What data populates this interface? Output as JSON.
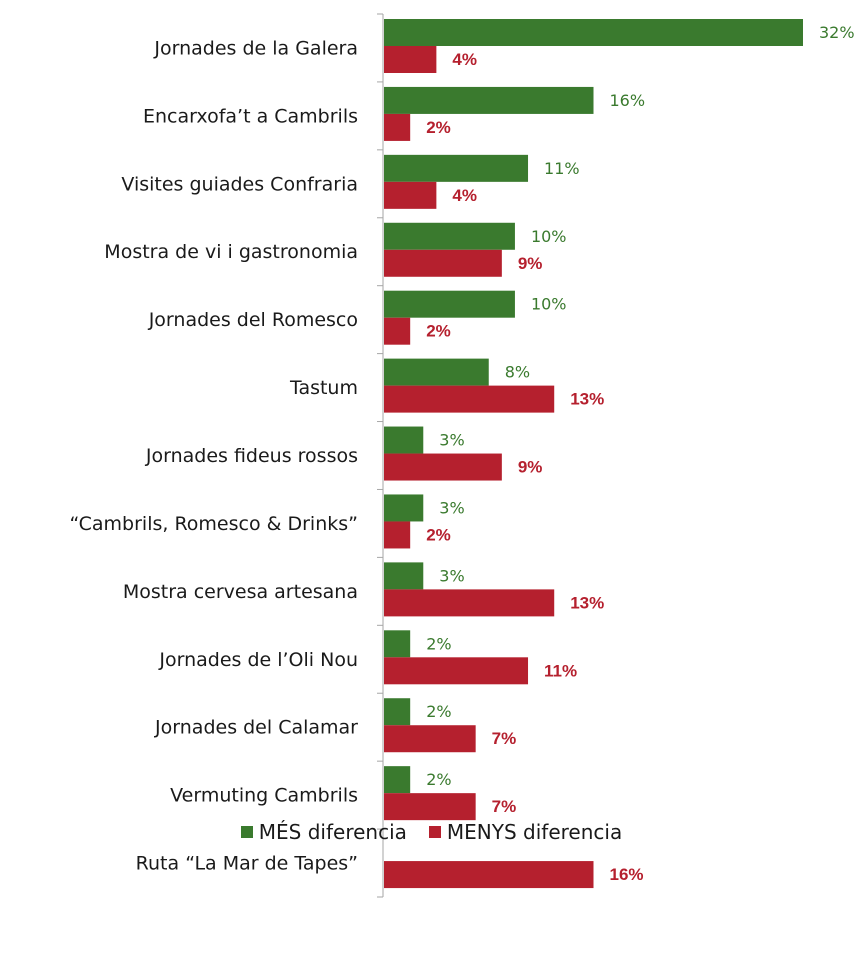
{
  "chart_data": {
    "type": "bar",
    "orientation": "horizontal",
    "categories": [
      "Jornades de la Galera",
      "Encarxofa’t a Cambrils",
      "Visites guiades Confraria",
      "Mostra de vi i gastronomia",
      "Jornades del Romesco",
      "Tastum",
      "Jornades fideus rossos",
      "“Cambrils, Romesco & Drinks”",
      "Mostra cervesa artesana",
      "Jornades de l’Oli Nou",
      "Jornades del Calamar",
      "Vermuting Cambrils",
      "Ruta “La Mar de Tapes”"
    ],
    "series": [
      {
        "name": "MÉS diferencia",
        "color": "#3a7a2e",
        "values": [
          32,
          16,
          11,
          10,
          10,
          8,
          3,
          3,
          3,
          2,
          2,
          2,
          0
        ],
        "labels": [
          "32%",
          "16%",
          "11%",
          "10%",
          "10%",
          "8%",
          "3%",
          "3%",
          "3%",
          "2%",
          "2%",
          "2%",
          ""
        ]
      },
      {
        "name": "MENYS diferencia",
        "color": "#b5202e",
        "values": [
          4,
          2,
          4,
          9,
          2,
          13,
          9,
          2,
          13,
          11,
          7,
          7,
          16
        ],
        "labels": [
          "4%",
          "2%",
          "4%",
          "9%",
          "2%",
          "13%",
          "9%",
          "2%",
          "13%",
          "11%",
          "7%",
          "7%",
          "16%"
        ]
      }
    ],
    "unit": "%",
    "xlim": [
      0,
      32
    ],
    "grid": false,
    "legend_position": "bottom"
  }
}
